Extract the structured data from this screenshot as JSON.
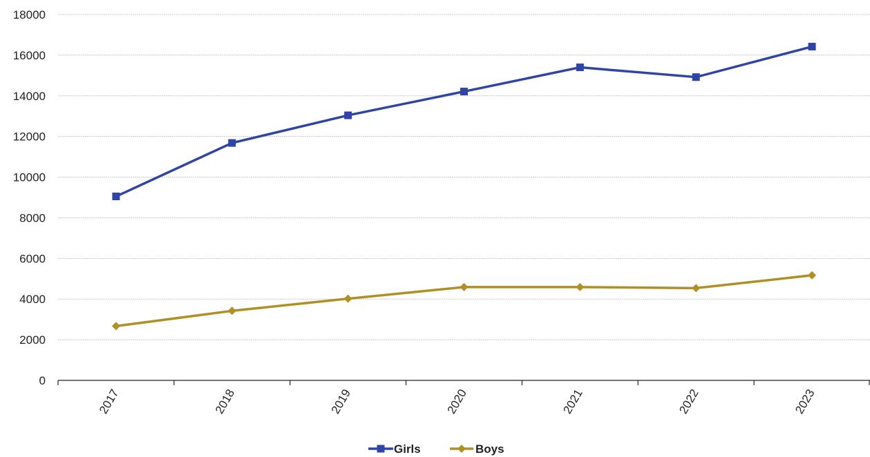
{
  "chart_data": {
    "type": "line",
    "title": "",
    "xlabel": "",
    "ylabel": "",
    "categories": [
      "2017",
      "2018",
      "2019",
      "2020",
      "2021",
      "2022",
      "2023"
    ],
    "ylim": [
      0,
      18000
    ],
    "yticks": [
      0,
      2000,
      4000,
      6000,
      8000,
      10000,
      12000,
      14000,
      16000,
      18000
    ],
    "grid": "horizontal",
    "legend_position": "bottom",
    "series": [
      {
        "name": "Girls",
        "color": "#2e44a6",
        "marker": "square",
        "values": [
          9050,
          11680,
          13040,
          14210,
          15400,
          14920,
          16420
        ]
      },
      {
        "name": "Boys",
        "color": "#b08f26",
        "marker": "diamond",
        "values": [
          2670,
          3420,
          4020,
          4590,
          4590,
          4540,
          5170
        ]
      }
    ]
  }
}
